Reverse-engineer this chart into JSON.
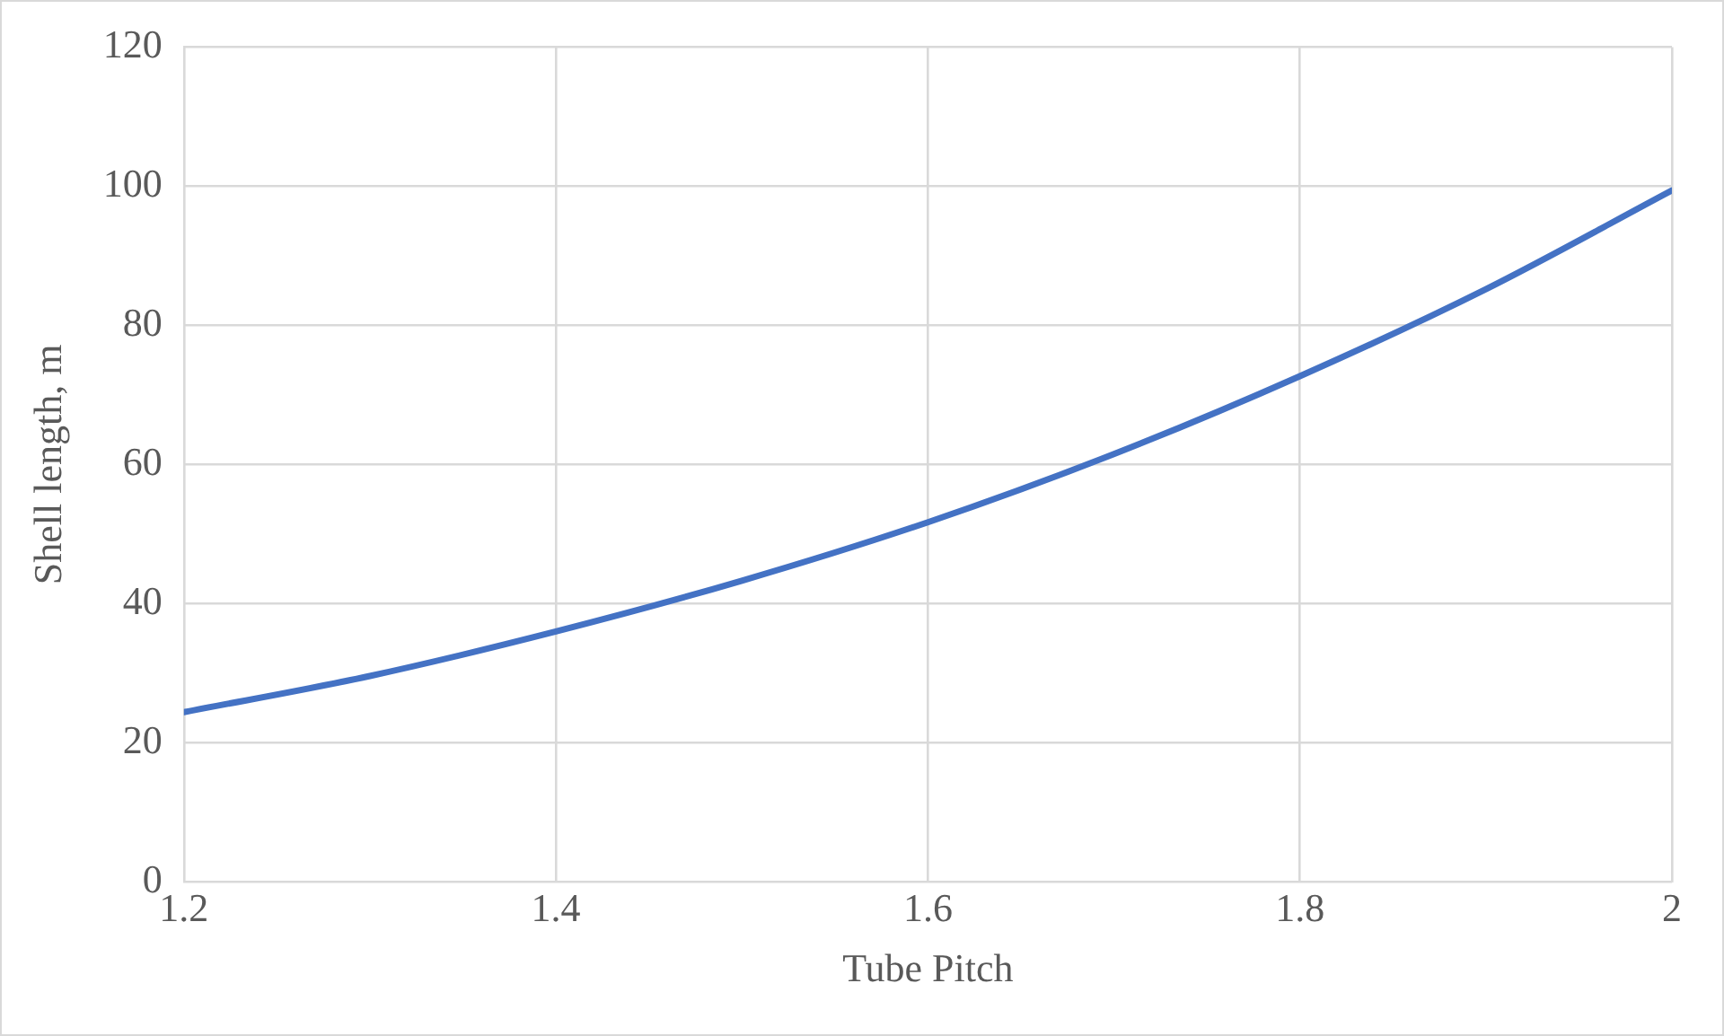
{
  "chart_data": {
    "type": "line",
    "xlabel": "Tube Pitch",
    "ylabel": "Shell length, m",
    "x": [
      1.2,
      1.3,
      1.4,
      1.5,
      1.6,
      1.7,
      1.8,
      1.9,
      2.0
    ],
    "series": [
      {
        "color": "#4472c4",
        "values": [
          24.4,
          29.6,
          36,
          43.3,
          51.7,
          61.5,
          72.7,
          85.2,
          99.4
        ]
      }
    ],
    "xlim": [
      1.2,
      2
    ],
    "xticks": [
      1.2,
      1.4,
      1.6,
      1.8,
      2
    ],
    "ylim": [
      0,
      120
    ],
    "yticks": [
      0,
      20,
      40,
      60,
      80,
      100,
      120
    ],
    "grid": true,
    "legend": false,
    "marker": "none",
    "line_style": "solid"
  }
}
